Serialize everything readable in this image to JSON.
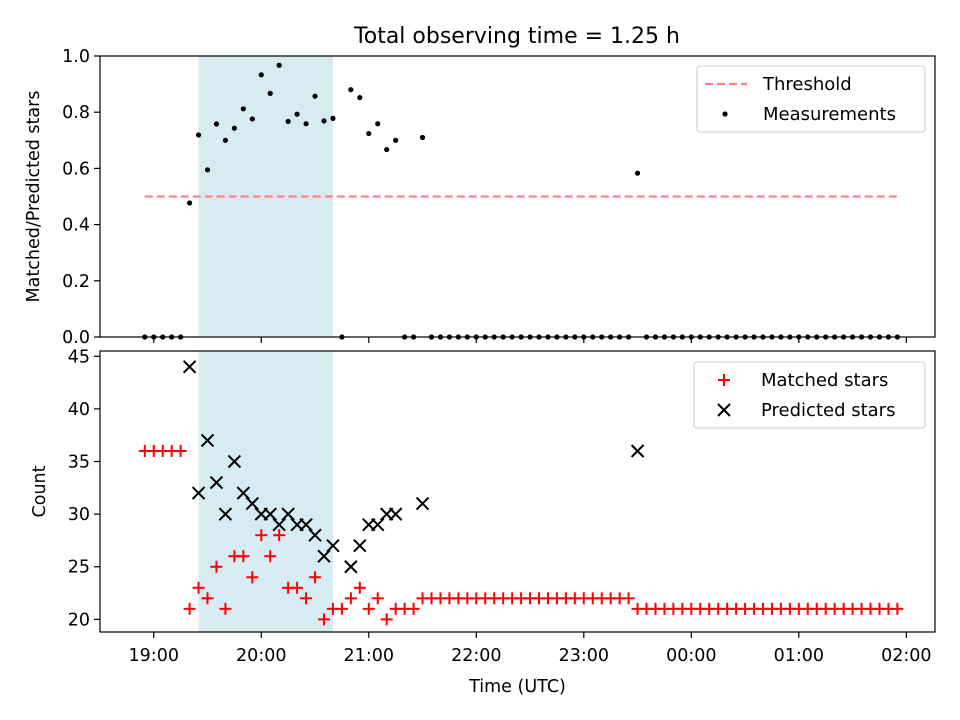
{
  "title": "Total observing time = 1.25 h",
  "chart_data": [
    {
      "type": "scatter",
      "ylabel": "Matched/Predicted stars",
      "ylim": [
        0.0,
        1.0
      ],
      "yticks": [
        0.0,
        0.2,
        0.4,
        0.6,
        0.8,
        1.0
      ],
      "ytick_labels": [
        "0.0",
        "0.2",
        "0.4",
        "0.6",
        "0.8",
        "1.0"
      ],
      "legend_position": "top-right",
      "shaded_interval": {
        "start": "19:25",
        "end": "20:40",
        "color": "#add8e6"
      },
      "threshold": {
        "name": "Threshold",
        "value": 0.5,
        "x_start": "18:55",
        "x_end": "01:55",
        "color": "#ff8080",
        "style": "dashed"
      },
      "series": [
        {
          "name": "Measurements",
          "marker": "dot",
          "color": "#000000",
          "points": [
            [
              "18:55",
              0.0
            ],
            [
              "19:00",
              0.0
            ],
            [
              "19:05",
              0.0
            ],
            [
              "19:10",
              0.0
            ],
            [
              "19:15",
              0.0
            ],
            [
              "19:20",
              0.477
            ],
            [
              "19:25",
              0.719
            ],
            [
              "19:30",
              0.595
            ],
            [
              "19:35",
              0.758
            ],
            [
              "19:40",
              0.7
            ],
            [
              "19:45",
              0.743
            ],
            [
              "19:50",
              0.812
            ],
            [
              "19:55",
              0.776
            ],
            [
              "20:00",
              0.933
            ],
            [
              "20:05",
              0.867
            ],
            [
              "20:10",
              0.967
            ],
            [
              "20:15",
              0.767
            ],
            [
              "20:20",
              0.793
            ],
            [
              "20:25",
              0.759
            ],
            [
              "20:30",
              0.857
            ],
            [
              "20:35",
              0.769
            ],
            [
              "20:40",
              0.778
            ],
            [
              "20:45",
              0.0
            ],
            [
              "20:50",
              0.88
            ],
            [
              "20:55",
              0.852
            ],
            [
              "21:00",
              0.724
            ],
            [
              "21:05",
              0.759
            ],
            [
              "21:10",
              0.667
            ],
            [
              "21:15",
              0.7
            ],
            [
              "21:20",
              0.0
            ],
            [
              "21:25",
              0.0
            ],
            [
              "21:30",
              0.71
            ],
            [
              "21:35",
              0.0
            ],
            [
              "21:40",
              0.0
            ],
            [
              "21:45",
              0.0
            ],
            [
              "21:50",
              0.0
            ],
            [
              "21:55",
              0.0
            ],
            [
              "22:00",
              0.0
            ],
            [
              "22:05",
              0.0
            ],
            [
              "22:10",
              0.0
            ],
            [
              "22:15",
              0.0
            ],
            [
              "22:20",
              0.0
            ],
            [
              "22:25",
              0.0
            ],
            [
              "22:30",
              0.0
            ],
            [
              "22:35",
              0.0
            ],
            [
              "22:40",
              0.0
            ],
            [
              "22:45",
              0.0
            ],
            [
              "22:50",
              0.0
            ],
            [
              "22:55",
              0.0
            ],
            [
              "23:00",
              0.0
            ],
            [
              "23:05",
              0.0
            ],
            [
              "23:10",
              0.0
            ],
            [
              "23:15",
              0.0
            ],
            [
              "23:20",
              0.0
            ],
            [
              "23:25",
              0.0
            ],
            [
              "23:30",
              0.583
            ],
            [
              "23:35",
              0.0
            ],
            [
              "23:40",
              0.0
            ],
            [
              "23:45",
              0.0
            ],
            [
              "23:50",
              0.0
            ],
            [
              "23:55",
              0.0
            ],
            [
              "00:00",
              0.0
            ],
            [
              "00:05",
              0.0
            ],
            [
              "00:10",
              0.0
            ],
            [
              "00:15",
              0.0
            ],
            [
              "00:20",
              0.0
            ],
            [
              "00:25",
              0.0
            ],
            [
              "00:30",
              0.0
            ],
            [
              "00:35",
              0.0
            ],
            [
              "00:40",
              0.0
            ],
            [
              "00:45",
              0.0
            ],
            [
              "00:50",
              0.0
            ],
            [
              "00:55",
              0.0
            ],
            [
              "01:00",
              0.0
            ],
            [
              "01:05",
              0.0
            ],
            [
              "01:10",
              0.0
            ],
            [
              "01:15",
              0.0
            ],
            [
              "01:20",
              0.0
            ],
            [
              "01:25",
              0.0
            ],
            [
              "01:30",
              0.0
            ],
            [
              "01:35",
              0.0
            ],
            [
              "01:40",
              0.0
            ],
            [
              "01:45",
              0.0
            ],
            [
              "01:50",
              0.0
            ],
            [
              "01:55",
              0.0
            ]
          ]
        }
      ]
    },
    {
      "type": "scatter",
      "xlabel": "Time (UTC)",
      "ylabel": "Count",
      "ylim": [
        18.8,
        45.5
      ],
      "yticks": [
        20,
        25,
        30,
        35,
        40,
        45
      ],
      "ytick_labels": [
        "20",
        "25",
        "30",
        "35",
        "40",
        "45"
      ],
      "xticks": [
        "19:00",
        "20:00",
        "21:00",
        "22:00",
        "23:00",
        "00:00",
        "01:00",
        "02:00"
      ],
      "legend_position": "top-right",
      "shaded_interval": {
        "start": "19:25",
        "end": "20:40",
        "color": "#add8e6"
      },
      "series": [
        {
          "name": "Matched stars",
          "marker": "plus",
          "color": "#ff0000",
          "points": [
            [
              "18:55",
              36
            ],
            [
              "19:00",
              36
            ],
            [
              "19:05",
              36
            ],
            [
              "19:10",
              36
            ],
            [
              "19:15",
              36
            ],
            [
              "19:20",
              21
            ],
            [
              "19:25",
              23
            ],
            [
              "19:30",
              22
            ],
            [
              "19:35",
              25
            ],
            [
              "19:40",
              21
            ],
            [
              "19:45",
              26
            ],
            [
              "19:50",
              26
            ],
            [
              "19:55",
              24
            ],
            [
              "20:00",
              28
            ],
            [
              "20:05",
              26
            ],
            [
              "20:10",
              28
            ],
            [
              "20:15",
              23
            ],
            [
              "20:20",
              23
            ],
            [
              "20:25",
              22
            ],
            [
              "20:30",
              24
            ],
            [
              "20:35",
              20
            ],
            [
              "20:40",
              21
            ],
            [
              "20:45",
              21
            ],
            [
              "20:50",
              22
            ],
            [
              "20:55",
              23
            ],
            [
              "21:00",
              21
            ],
            [
              "21:05",
              22
            ],
            [
              "21:10",
              20
            ],
            [
              "21:15",
              21
            ],
            [
              "21:20",
              21
            ],
            [
              "21:25",
              21
            ],
            [
              "21:30",
              22
            ],
            [
              "21:35",
              22
            ],
            [
              "21:40",
              22
            ],
            [
              "21:45",
              22
            ],
            [
              "21:50",
              22
            ],
            [
              "21:55",
              22
            ],
            [
              "22:00",
              22
            ],
            [
              "22:05",
              22
            ],
            [
              "22:10",
              22
            ],
            [
              "22:15",
              22
            ],
            [
              "22:20",
              22
            ],
            [
              "22:25",
              22
            ],
            [
              "22:30",
              22
            ],
            [
              "22:35",
              22
            ],
            [
              "22:40",
              22
            ],
            [
              "22:45",
              22
            ],
            [
              "22:50",
              22
            ],
            [
              "22:55",
              22
            ],
            [
              "23:00",
              22
            ],
            [
              "23:05",
              22
            ],
            [
              "23:10",
              22
            ],
            [
              "23:15",
              22
            ],
            [
              "23:20",
              22
            ],
            [
              "23:25",
              22
            ],
            [
              "23:30",
              21
            ],
            [
              "23:35",
              21
            ],
            [
              "23:40",
              21
            ],
            [
              "23:45",
              21
            ],
            [
              "23:50",
              21
            ],
            [
              "23:55",
              21
            ],
            [
              "00:00",
              21
            ],
            [
              "00:05",
              21
            ],
            [
              "00:10",
              21
            ],
            [
              "00:15",
              21
            ],
            [
              "00:20",
              21
            ],
            [
              "00:25",
              21
            ],
            [
              "00:30",
              21
            ],
            [
              "00:35",
              21
            ],
            [
              "00:40",
              21
            ],
            [
              "00:45",
              21
            ],
            [
              "00:50",
              21
            ],
            [
              "00:55",
              21
            ],
            [
              "01:00",
              21
            ],
            [
              "01:05",
              21
            ],
            [
              "01:10",
              21
            ],
            [
              "01:15",
              21
            ],
            [
              "01:20",
              21
            ],
            [
              "01:25",
              21
            ],
            [
              "01:30",
              21
            ],
            [
              "01:35",
              21
            ],
            [
              "01:40",
              21
            ],
            [
              "01:45",
              21
            ],
            [
              "01:50",
              21
            ],
            [
              "01:55",
              21
            ]
          ]
        },
        {
          "name": "Predicted stars",
          "marker": "x",
          "color": "#000000",
          "points": [
            [
              "19:20",
              44
            ],
            [
              "19:25",
              32
            ],
            [
              "19:30",
              37
            ],
            [
              "19:35",
              33
            ],
            [
              "19:40",
              30
            ],
            [
              "19:45",
              35
            ],
            [
              "19:50",
              32
            ],
            [
              "19:55",
              31
            ],
            [
              "20:00",
              30
            ],
            [
              "20:05",
              30
            ],
            [
              "20:10",
              29
            ],
            [
              "20:15",
              30
            ],
            [
              "20:20",
              29
            ],
            [
              "20:25",
              29
            ],
            [
              "20:30",
              28
            ],
            [
              "20:35",
              26
            ],
            [
              "20:40",
              27
            ],
            [
              "20:50",
              25
            ],
            [
              "20:55",
              27
            ],
            [
              "21:00",
              29
            ],
            [
              "21:05",
              29
            ],
            [
              "21:10",
              30
            ],
            [
              "21:15",
              30
            ],
            [
              "21:30",
              31
            ],
            [
              "23:30",
              36
            ]
          ]
        }
      ]
    }
  ]
}
